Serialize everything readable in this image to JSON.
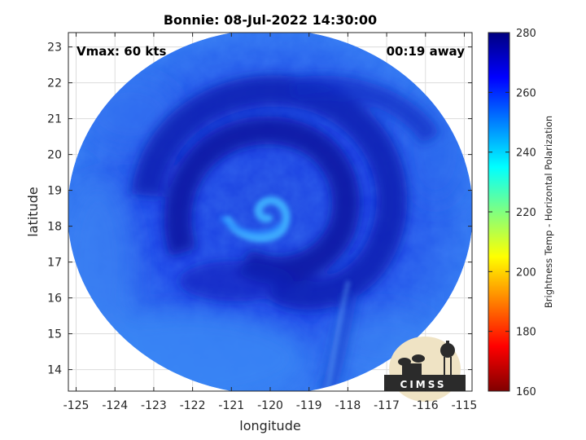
{
  "chart_data": {
    "type": "heatmap",
    "title": "Bonnie: 08-Jul-2022 14:30:00",
    "annotations": {
      "vmax": "Vmax: 60 kts",
      "time_away": "00:19 away"
    },
    "xlabel": "longitude",
    "ylabel": "latitude",
    "xlim": [
      -125.2,
      -114.8
    ],
    "ylim": [
      13.4,
      23.4
    ],
    "xticks": [
      -125,
      -124,
      -123,
      -122,
      -121,
      -120,
      -119,
      -118,
      -117,
      -116,
      -115
    ],
    "yticks": [
      14,
      15,
      16,
      17,
      18,
      19,
      20,
      21,
      22,
      23
    ],
    "grid": true,
    "colorbar": {
      "label": "Brightness Temp - Horizontal Polarization",
      "range": [
        160,
        280
      ],
      "ticks": [
        160,
        180,
        200,
        220,
        240,
        260,
        280
      ],
      "colormap": "jet",
      "colors": [
        "#800000",
        "#ff0000",
        "#ff8000",
        "#ffff00",
        "#80ff80",
        "#00ffff",
        "#0080ff",
        "#0000ff",
        "#000080"
      ]
    },
    "storm": {
      "name": "Bonnie",
      "center_lon": -120.1,
      "center_lat": 18.4,
      "swath_center_lon": -120.0,
      "swath_center_lat": 18.4
    },
    "logo": {
      "text": "CIMSS",
      "colors": {
        "background": "#efe3c4",
        "dark": "#2b2b2b"
      }
    }
  }
}
